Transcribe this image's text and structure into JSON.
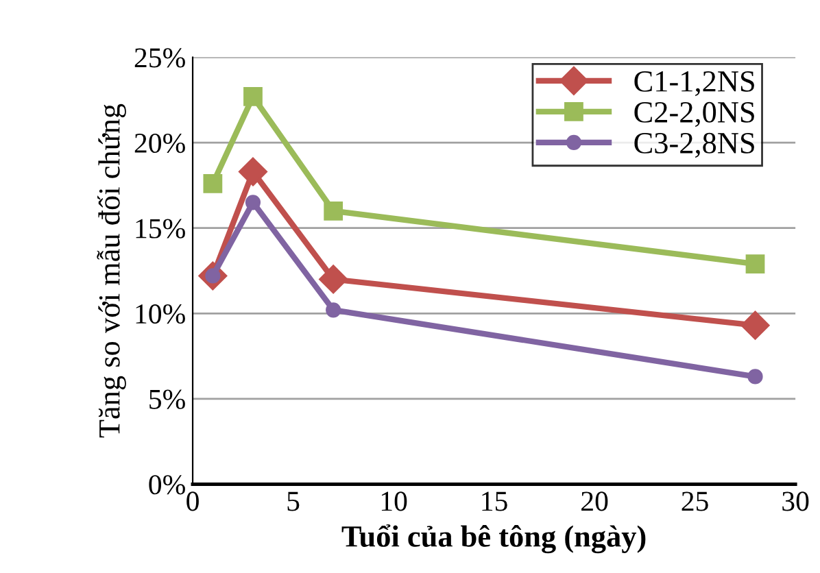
{
  "chart_data": {
    "type": "line",
    "xlabel": "Tuổi của bê tông (ngày)",
    "ylabel": "Tăng so với mẫu đối chứng",
    "x": [
      1,
      3,
      7,
      28
    ],
    "series": [
      {
        "name": "C1-1,2NS",
        "color": "#c0504d",
        "marker": "diamond",
        "values": [
          12.2,
          18.3,
          12.0,
          9.3
        ]
      },
      {
        "name": "C2-2,0NS",
        "color": "#9bbb59",
        "marker": "square",
        "values": [
          17.6,
          22.7,
          16.0,
          12.9
        ]
      },
      {
        "name": "C3-2,8NS",
        "color": "#8064a2",
        "marker": "circle",
        "values": [
          12.2,
          16.5,
          10.2,
          6.3
        ]
      }
    ],
    "xlim": [
      0,
      30
    ],
    "xticks": [
      0,
      5,
      10,
      15,
      20,
      25,
      30
    ],
    "ylim": [
      0,
      25
    ],
    "yticks": [
      {
        "value": 0,
        "label": "0%"
      },
      {
        "value": 5,
        "label": "5%"
      },
      {
        "value": 10,
        "label": "10%"
      },
      {
        "value": 15,
        "label": "15%"
      },
      {
        "value": 20,
        "label": "20%"
      },
      {
        "value": 25,
        "label": "25%"
      }
    ],
    "grid": "y",
    "legend": "top right",
    "line_style": "solid"
  }
}
